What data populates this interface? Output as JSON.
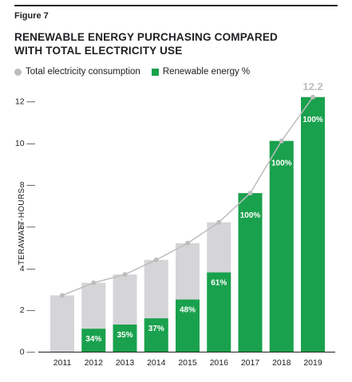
{
  "figure_label": "Figure 7",
  "title_line1": "RENEWABLE ENERGY PURCHASING COMPARED",
  "title_line2": "WITH TOTAL ELECTRICITY USE",
  "legend": {
    "total": "Total electricity consumption",
    "renewable": "Renewable energy %"
  },
  "colors": {
    "total": "#d5d5d8",
    "renewable": "#1aa14d",
    "line": "#bdbdbd",
    "axis": "#202124"
  },
  "chart_data": {
    "type": "bar",
    "ylabel": "TERAWATT-HOURS",
    "ylim": [
      0,
      12
    ],
    "yticks": [
      "0",
      "2",
      "4",
      "6",
      "8",
      "10",
      "12"
    ],
    "categories": [
      "2011",
      "2012",
      "2013",
      "2014",
      "2015",
      "2016",
      "2017",
      "2018",
      "2019"
    ],
    "series": [
      {
        "name": "Total electricity consumption",
        "values": [
          2.7,
          3.3,
          3.7,
          4.4,
          5.2,
          6.2,
          7.6,
          10.1,
          12.2
        ]
      },
      {
        "name": "Renewable energy %",
        "values": [
          0,
          1.1,
          1.3,
          1.6,
          2.5,
          3.8,
          7.6,
          10.1,
          12.2
        ],
        "labels": [
          "",
          "34%",
          "35%",
          "37%",
          "48%",
          "61%",
          "100%",
          "100%",
          "100%"
        ]
      }
    ],
    "annotation": "12.2"
  }
}
